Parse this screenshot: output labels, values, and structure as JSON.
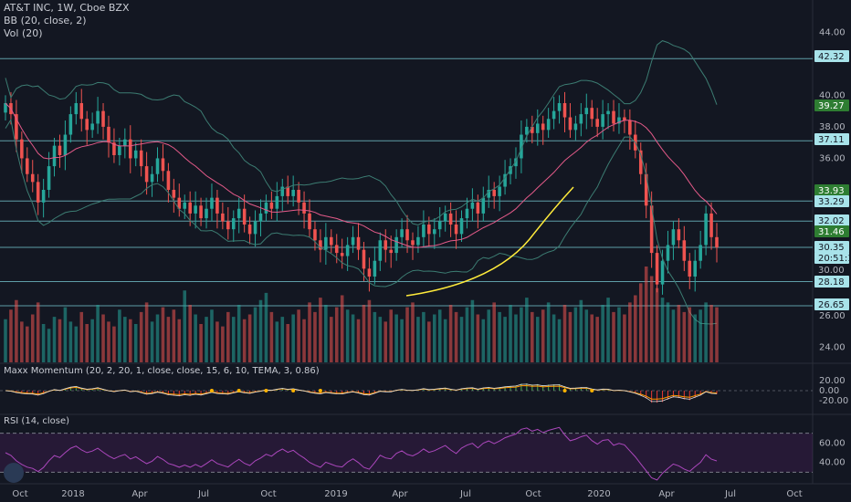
{
  "header": {
    "symbol_line": "AT&T INC, 1W, Cboe BZX",
    "bb_line": "BB (20, close, 2)",
    "vol_line": "Vol (20)"
  },
  "panes": {
    "momentum_title": "Maxx Momentum (20, 2, 20, 1, close, close, 15, 6, 10, TEMA, 3, 0.86)",
    "rsi_title": "RSI (14, close)"
  },
  "chart_data": {
    "type": "candlestick",
    "colors": {
      "up": "#26a69a",
      "down": "#ef5350",
      "bb": "#3c7c72",
      "basis": "#e45a89",
      "trend": "#ffeb3b",
      "level": "#7fd6e0",
      "rsi": "#9c27b0"
    },
    "price_axis": {
      "ticks": [
        44.0,
        40.0,
        38.0,
        36.0,
        26.0,
        24.0
      ],
      "range": [
        23,
        45
      ]
    },
    "price_labels": [
      {
        "value": "42.32",
        "style": "cyan"
      },
      {
        "value": "39.27",
        "style": "green"
      },
      {
        "value": "37.11",
        "style": "cyan"
      },
      {
        "value": "33.93",
        "style": "green"
      },
      {
        "value": "33.29",
        "style": "cyan"
      },
      {
        "value": "32.02",
        "style": "cyan"
      },
      {
        "value": "31.46",
        "style": "green"
      },
      {
        "value": "30.35",
        "style": "cyan"
      },
      {
        "value": "20:51:19",
        "style": "cyan"
      },
      {
        "value": "30.00",
        "style": "plain"
      },
      {
        "value": "28.18",
        "style": "cyan"
      },
      {
        "value": "26.65",
        "style": "cyan"
      }
    ],
    "levels": [
      42.32,
      37.11,
      33.29,
      32.02,
      30.35,
      28.18,
      26.65
    ],
    "x_axis": [
      "Oct",
      "2018",
      "Apr",
      "Jul",
      "Oct",
      "2019",
      "Apr",
      "Jul",
      "Oct",
      "2020",
      "Apr",
      "Jul",
      "Oct"
    ],
    "momentum_axis": [
      "20.00",
      "0.00",
      "-20.00"
    ],
    "rsi_axis": [
      "60.00",
      "40.00"
    ],
    "weekly_close": [
      39.5,
      38.8,
      37.2,
      36.0,
      35.0,
      34.5,
      33.2,
      34.0,
      35.5,
      36.8,
      36.2,
      37.5,
      38.8,
      39.5,
      38.5,
      37.8,
      38.2,
      39.0,
      38.0,
      37.0,
      36.2,
      36.8,
      37.2,
      36.0,
      36.5,
      35.5,
      34.5,
      35.0,
      36.0,
      35.2,
      34.0,
      33.5,
      32.8,
      33.2,
      32.5,
      33.0,
      32.2,
      32.8,
      33.5,
      32.5,
      32.0,
      31.5,
      32.2,
      32.8,
      31.8,
      31.2,
      32.0,
      32.5,
      33.2,
      32.8,
      33.6,
      34.2,
      33.6,
      34.0,
      33.2,
      32.5,
      31.5,
      30.8,
      30.2,
      31.0,
      30.5,
      30.0,
      29.8,
      30.5,
      31.0,
      30.2,
      29.0,
      28.5,
      29.5,
      30.8,
      30.2,
      30.0,
      31.0,
      31.5,
      30.8,
      30.5,
      31.0,
      31.8,
      31.2,
      31.5,
      32.0,
      32.5,
      31.8,
      31.2,
      32.2,
      32.8,
      33.2,
      32.5,
      33.5,
      34.0,
      33.6,
      34.2,
      35.0,
      35.5,
      36.0,
      37.5,
      38.0,
      37.6,
      38.2,
      37.8,
      38.5,
      39.0,
      39.5,
      38.6,
      37.8,
      38.2,
      38.8,
      39.2,
      38.5,
      38.0,
      38.8,
      39.0,
      38.2,
      38.6,
      38.4,
      37.5,
      36.5,
      35.0,
      33.0,
      30.0,
      28.0,
      29.5,
      30.5,
      31.5,
      30.8,
      29.5,
      28.5,
      29.5,
      30.5,
      32.5,
      31.0,
      30.35
    ],
    "volume": [
      18,
      22,
      26,
      17,
      15,
      20,
      25,
      16,
      14,
      19,
      18,
      23,
      17,
      15,
      21,
      16,
      18,
      24,
      20,
      17,
      15,
      22,
      19,
      18,
      16,
      21,
      25,
      17,
      20,
      23,
      19,
      22,
      18,
      30,
      24,
      20,
      16,
      19,
      22,
      17,
      15,
      21,
      19,
      24,
      18,
      20,
      23,
      26,
      29,
      21,
      17,
      19,
      16,
      20,
      22,
      18,
      25,
      21,
      27,
      24,
      19,
      23,
      28,
      22,
      20,
      18,
      24,
      26,
      21,
      19,
      17,
      22,
      20,
      18,
      23,
      25,
      19,
      21,
      17,
      20,
      22,
      18,
      24,
      21,
      19,
      23,
      26,
      20,
      18,
      22,
      25,
      21,
      19,
      24,
      20,
      23,
      27,
      21,
      19,
      22,
      25,
      20,
      18,
      24,
      21,
      23,
      26,
      22,
      20,
      19,
      24,
      27,
      21,
      23,
      20,
      25,
      28,
      33,
      40,
      36,
      31,
      27,
      25,
      22,
      24,
      21,
      23,
      20,
      22,
      25,
      24,
      23
    ]
  }
}
